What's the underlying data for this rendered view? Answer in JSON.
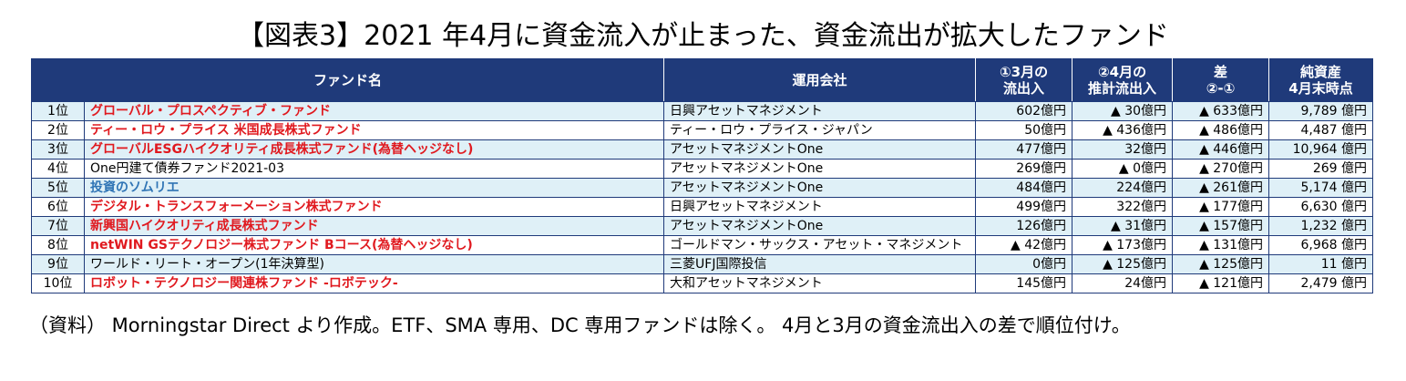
{
  "title": "【図表3】2021 年4月に資金流入が止まった、資金流出が拡大したファンド",
  "headers": {
    "fund": "ファンド名",
    "company": "運用会社",
    "march_line1": "①3月の",
    "march_line2": "流出入",
    "april_line1": "②4月の",
    "april_line2": "推計流出入",
    "diff_line1": "差",
    "diff_line2": "②-①",
    "nav_line1": "純資産",
    "nav_line2": "4月末時点"
  },
  "colors": {
    "header_bg": "#1f3a7a",
    "red": "#e0191f",
    "blue": "#2f74b5",
    "row_tint": "#dff0f7"
  },
  "rows": [
    {
      "rank": "1位",
      "fund": "グローバル・プロスペクティブ・ファンド",
      "color": "red",
      "company": "日興アセットマネジメント",
      "march": "602億円",
      "april": "▲ 30億円",
      "diff": "▲ 633億円",
      "nav": "9,789 億円"
    },
    {
      "rank": "2位",
      "fund": "ティー・ロウ・プライス 米国成長株式ファンド",
      "color": "red",
      "company": "ティー・ロウ・プライス・ジャパン",
      "march": "50億円",
      "april": "▲ 436億円",
      "diff": "▲ 486億円",
      "nav": "4,487 億円"
    },
    {
      "rank": "3位",
      "fund": "グローバルESGハイクオリティ成長株式ファンド(為替ヘッジなし)",
      "color": "red",
      "company": "アセットマネジメントOne",
      "march": "477億円",
      "april": "32億円",
      "diff": "▲ 446億円",
      "nav": "10,964 億円"
    },
    {
      "rank": "4位",
      "fund": "One円建て債券ファンド2021-03",
      "color": "black",
      "company": "アセットマネジメントOne",
      "march": "269億円",
      "april": "▲ 0億円",
      "diff": "▲ 270億円",
      "nav": "269 億円"
    },
    {
      "rank": "5位",
      "fund": "投資のソムリエ",
      "color": "blue",
      "company": "アセットマネジメントOne",
      "march": "484億円",
      "april": "224億円",
      "diff": "▲ 261億円",
      "nav": "5,174 億円"
    },
    {
      "rank": "6位",
      "fund": "デジタル・トランスフォーメーション株式ファンド",
      "color": "red",
      "company": "日興アセットマネジメント",
      "march": "499億円",
      "april": "322億円",
      "diff": "▲ 177億円",
      "nav": "6,630 億円"
    },
    {
      "rank": "7位",
      "fund": "新興国ハイクオリティ成長株式ファンド",
      "color": "red",
      "company": "アセットマネジメントOne",
      "march": "126億円",
      "april": "▲ 31億円",
      "diff": "▲ 157億円",
      "nav": "1,232 億円"
    },
    {
      "rank": "8位",
      "fund": "netWIN GSテクノロジー株式ファンド Bコース(為替ヘッジなし)",
      "color": "red",
      "company": "ゴールドマン・サックス・アセット・マネジメント",
      "march": "▲ 42億円",
      "april": "▲ 173億円",
      "diff": "▲ 131億円",
      "nav": "6,968 億円"
    },
    {
      "rank": "9位",
      "fund": "ワールド・リート・オープン(1年決算型)",
      "color": "black",
      "company": "三菱UFJ国際投信",
      "march": "0億円",
      "april": "▲ 125億円",
      "diff": "▲ 125億円",
      "nav": "11 億円"
    },
    {
      "rank": "10位",
      "fund": "ロボット・テクノロジー関連株ファンド -ロボテック-",
      "color": "red",
      "company": "大和アセットマネジメント",
      "march": "145億円",
      "april": "24億円",
      "diff": "▲ 121億円",
      "nav": "2,479 億円"
    }
  ],
  "note": "（資料） Morningstar Direct より作成。ETF、SMA 専用、DC 専用ファンドは除く。 4月と3月の資金流出入の差で順位付け。"
}
